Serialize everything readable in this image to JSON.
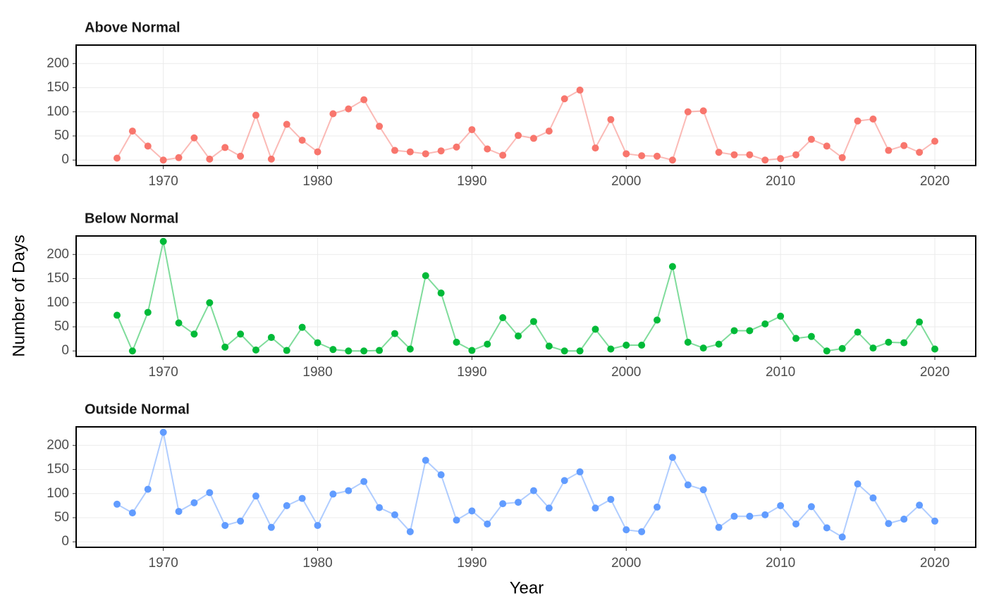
{
  "chart_data": [
    {
      "type": "line",
      "title": "Above Normal",
      "x": [
        1967,
        1968,
        1969,
        1970,
        1971,
        1972,
        1973,
        1974,
        1975,
        1976,
        1977,
        1978,
        1979,
        1980,
        1981,
        1982,
        1983,
        1984,
        1985,
        1986,
        1987,
        1988,
        1989,
        1990,
        1991,
        1992,
        1993,
        1994,
        1995,
        1996,
        1997,
        1998,
        1999,
        2000,
        2001,
        2002,
        2003,
        2004,
        2005,
        2006,
        2007,
        2008,
        2009,
        2010,
        2011,
        2012,
        2013,
        2014,
        2015,
        2016,
        2017,
        2018,
        2019,
        2020
      ],
      "series": [
        {
          "color": "#F8766D",
          "values": [
            4,
            60,
            29,
            0,
            5,
            46,
            2,
            26,
            8,
            93,
            2,
            74,
            41,
            17,
            96,
            106,
            125,
            70,
            20,
            17,
            13,
            19,
            27,
            63,
            23,
            10,
            51,
            45,
            60,
            127,
            145,
            25,
            84,
            13,
            9,
            8,
            0,
            100,
            102,
            16,
            11,
            11,
            0,
            3,
            11,
            43,
            29,
            5,
            81,
            85,
            20,
            30,
            16,
            39
          ]
        }
      ],
      "xlim": [
        1964.35,
        2022.65
      ],
      "xticks": [
        1970,
        1980,
        1990,
        2000,
        2010,
        2020
      ],
      "ylim": [
        -11.35,
        238.35
      ],
      "yticks": [
        0,
        50,
        100,
        150,
        200
      ],
      "grid": true
    },
    {
      "type": "line",
      "title": "Below Normal",
      "y_label": "Number of Days",
      "x": [
        1967,
        1968,
        1969,
        1970,
        1971,
        1972,
        1973,
        1974,
        1975,
        1976,
        1977,
        1978,
        1979,
        1980,
        1981,
        1982,
        1983,
        1984,
        1985,
        1986,
        1987,
        1988,
        1989,
        1990,
        1991,
        1992,
        1993,
        1994,
        1995,
        1996,
        1997,
        1998,
        1999,
        2000,
        2001,
        2002,
        2003,
        2004,
        2005,
        2006,
        2007,
        2008,
        2009,
        2010,
        2011,
        2012,
        2013,
        2014,
        2015,
        2016,
        2017,
        2018,
        2019,
        2020
      ],
      "series": [
        {
          "color": "#00BA38",
          "values": [
            74,
            0,
            80,
            227,
            58,
            35,
            100,
            8,
            35,
            2,
            28,
            1,
            49,
            17,
            3,
            0,
            0,
            1,
            36,
            4,
            156,
            120,
            18,
            1,
            14,
            69,
            31,
            61,
            10,
            0,
            0,
            45,
            4,
            12,
            12,
            64,
            175,
            18,
            6,
            14,
            42,
            42,
            56,
            72,
            26,
            30,
            0,
            5,
            39,
            6,
            18,
            17,
            60,
            4
          ]
        }
      ],
      "xlim": [
        1964.35,
        2022.65
      ],
      "xticks": [
        1970,
        1980,
        1990,
        2000,
        2010,
        2020
      ],
      "ylim": [
        -11.35,
        238.35
      ],
      "yticks": [
        0,
        50,
        100,
        150,
        200
      ],
      "grid": true
    },
    {
      "type": "line",
      "title": "Outside Normal",
      "x_label": "Year",
      "x": [
        1967,
        1968,
        1969,
        1970,
        1971,
        1972,
        1973,
        1974,
        1975,
        1976,
        1977,
        1978,
        1979,
        1980,
        1981,
        1982,
        1983,
        1984,
        1985,
        1986,
        1987,
        1988,
        1989,
        1990,
        1991,
        1992,
        1993,
        1994,
        1995,
        1996,
        1997,
        1998,
        1999,
        2000,
        2001,
        2002,
        2003,
        2004,
        2005,
        2006,
        2007,
        2008,
        2009,
        2010,
        2011,
        2012,
        2013,
        2014,
        2015,
        2016,
        2017,
        2018,
        2019,
        2020
      ],
      "series": [
        {
          "color": "#619CFF",
          "values": [
            78,
            60,
            109,
            227,
            63,
            81,
            102,
            34,
            43,
            95,
            30,
            75,
            90,
            34,
            99,
            106,
            125,
            71,
            56,
            21,
            169,
            139,
            45,
            64,
            37,
            79,
            82,
            106,
            70,
            127,
            145,
            70,
            88,
            25,
            21,
            72,
            175,
            118,
            108,
            30,
            53,
            53,
            56,
            75,
            37,
            73,
            29,
            10,
            120,
            91,
            38,
            47,
            76,
            43
          ]
        }
      ],
      "xlim": [
        1964.35,
        2022.65
      ],
      "xticks": [
        1970,
        1980,
        1990,
        2000,
        2010,
        2020
      ],
      "ylim": [
        -11.35,
        238.35
      ],
      "yticks": [
        0,
        50,
        100,
        150,
        200
      ],
      "grid": true
    }
  ]
}
